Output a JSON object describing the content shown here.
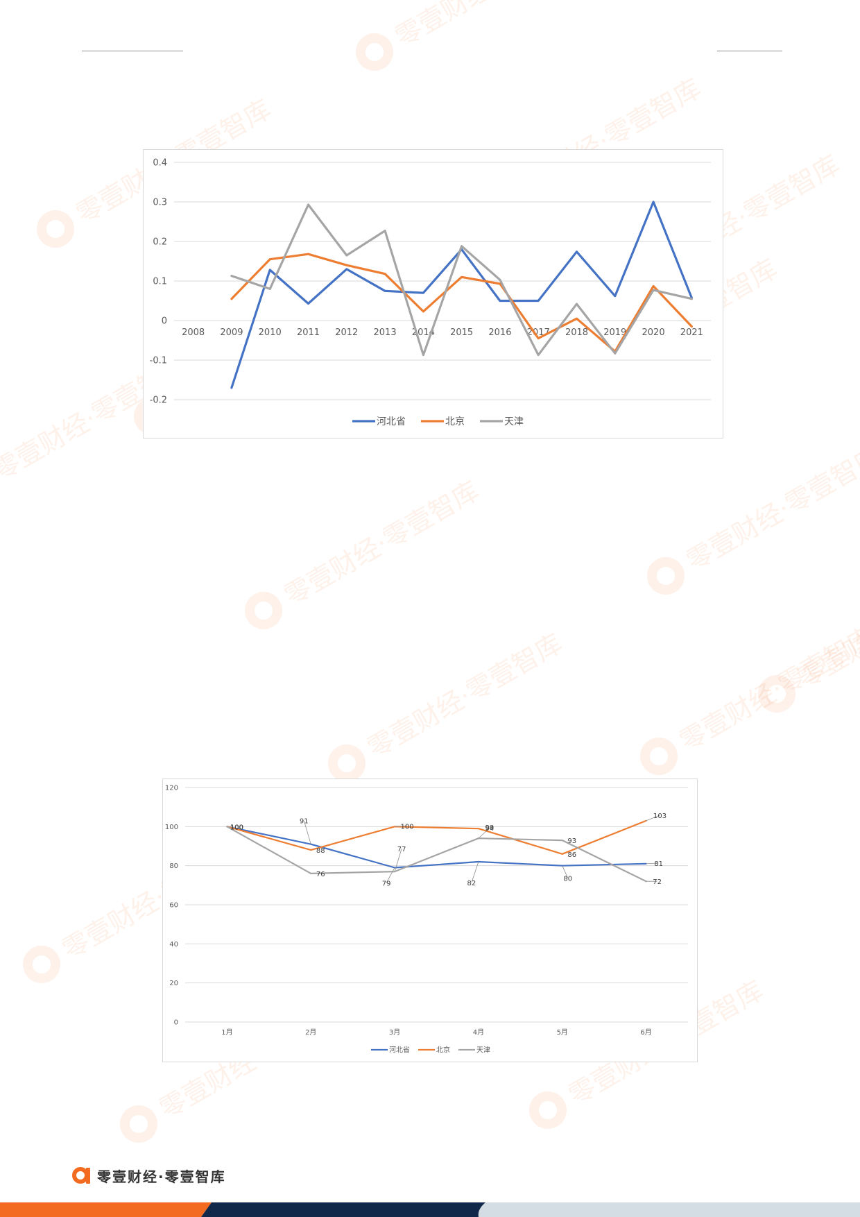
{
  "colors": {
    "hebei": "#4472c4",
    "beijing": "#ed7d31",
    "tianjin": "#a5a5a5",
    "brand_orange": "#f26b21",
    "brand_navy": "#12284a",
    "brand_grey": "#d4dde3",
    "watermark": "#f26b21"
  },
  "icons": {
    "brand_logo": "alpha-logo-icon"
  },
  "watermark_text": "零壹财经·零壹智库",
  "brand": {
    "name": "零壹财经·零壹智库"
  },
  "chart_data": [
    {
      "type": "line",
      "title": "",
      "x": [
        "2008",
        "2009",
        "2010",
        "2011",
        "2012",
        "2013",
        "2014",
        "2015",
        "2016",
        "2017",
        "2018",
        "2019",
        "2020",
        "2021"
      ],
      "ylim": [
        -0.2,
        0.4
      ],
      "yticks": [
        "-0.2",
        "-0.1",
        "0",
        "0.1",
        "0.2",
        "0.3",
        "0.4"
      ],
      "grid": true,
      "legend": "bottom",
      "series": [
        {
          "name": "河北省",
          "values": [
            null,
            -0.17,
            0.128,
            0.043,
            0.13,
            0.075,
            0.07,
            0.18,
            0.05,
            0.05,
            0.174,
            0.062,
            0.3,
            0.057
          ]
        },
        {
          "name": "北京",
          "values": [
            null,
            0.055,
            0.155,
            0.168,
            0.14,
            0.118,
            0.023,
            0.11,
            0.093,
            -0.045,
            0.005,
            -0.078,
            0.087,
            -0.015
          ]
        },
        {
          "name": "天津",
          "values": [
            null,
            0.113,
            0.08,
            0.293,
            0.165,
            0.227,
            -0.087,
            0.188,
            0.103,
            -0.087,
            0.042,
            -0.083,
            0.077,
            0.055
          ]
        }
      ]
    },
    {
      "type": "line",
      "title": "",
      "x": [
        "1月",
        "2月",
        "3月",
        "4月",
        "5月",
        "6月"
      ],
      "ylim": [
        0,
        120
      ],
      "yticks": [
        "0",
        "20",
        "40",
        "60",
        "80",
        "100",
        "120"
      ],
      "grid": true,
      "legend": "bottom",
      "series": [
        {
          "name": "河北省",
          "values": [
            100,
            91,
            79,
            82,
            80,
            81
          ],
          "labels": [
            "100",
            "91",
            "79",
            "82",
            "80",
            "81"
          ]
        },
        {
          "name": "北京",
          "values": [
            100,
            88,
            100,
            99,
            86,
            103
          ],
          "labels": [
            "100",
            "88",
            "100",
            "99",
            "86",
            "103"
          ]
        },
        {
          "name": "天津",
          "values": [
            100,
            76,
            77,
            94,
            93,
            72
          ],
          "labels": [
            "100",
            "76",
            "77",
            "94",
            "93",
            "72"
          ]
        }
      ]
    }
  ]
}
